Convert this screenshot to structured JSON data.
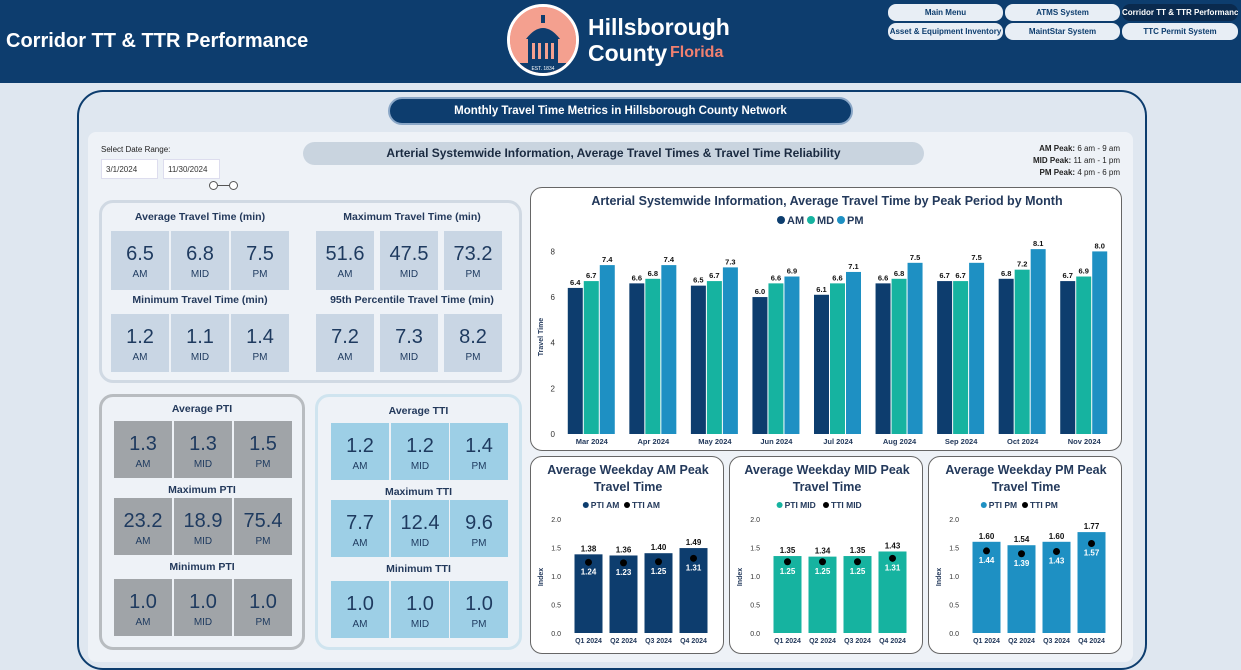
{
  "header": {
    "title": "Corridor TT & TTR Performance",
    "logo_line1": "Hillsborough",
    "logo_line2": "County",
    "logo_line3": "Florida",
    "seal_text": "EST. 1834",
    "nav": [
      "Main Menu",
      "ATMS System",
      "Corridor TT & TTR Performance",
      "Asset & Equipment Inventory",
      "MaintStar System",
      "TTC Permit System"
    ],
    "active_nav": "Corridor TT & TTR Performance"
  },
  "frame_title": "Monthly Travel Time Metrics in Hillsborough County Network",
  "date_range": {
    "label": "Select Date Range:",
    "start": "3/1/2024",
    "end": "11/30/2024"
  },
  "section_title": "Arterial Systemwide Information, Average Travel Times & Travel Time Reliability",
  "peak_notes": [
    {
      "name": "AM Peak:",
      "range": "6 am - 9 am"
    },
    {
      "name": "MID Peak:",
      "range": "11 am - 1 pm"
    },
    {
      "name": "PM Peak:",
      "range": "4 pm - 6 pm"
    }
  ],
  "kpis": {
    "avg_tt": {
      "title": "Average Travel Time (min)",
      "am": "6.5",
      "mid": "6.8",
      "pm": "7.5"
    },
    "max_tt": {
      "title": "Maximum Travel Time (min)",
      "am": "51.6",
      "mid": "47.5",
      "pm": "73.2"
    },
    "min_tt": {
      "title": "Minimum Travel Time (min)",
      "am": "1.2",
      "mid": "1.1",
      "pm": "1.4"
    },
    "p95_tt": {
      "title": "95th Percentile Travel Time (min)",
      "am": "7.2",
      "mid": "7.3",
      "pm": "8.2"
    },
    "avg_pti": {
      "title": "Average PTI",
      "am": "1.3",
      "mid": "1.3",
      "pm": "1.5"
    },
    "max_pti": {
      "title": "Maximum PTI",
      "am": "23.2",
      "mid": "18.9",
      "pm": "75.4"
    },
    "min_pti": {
      "title": "Minimum PTI",
      "am": "1.0",
      "mid": "1.0",
      "pm": "1.0"
    },
    "avg_tti": {
      "title": "Average TTI",
      "am": "1.2",
      "mid": "1.2",
      "pm": "1.4"
    },
    "max_tti": {
      "title": "Maximum TTI",
      "am": "7.7",
      "mid": "12.4",
      "pm": "9.6"
    },
    "min_tti": {
      "title": "Minimum TTI",
      "am": "1.0",
      "mid": "1.0",
      "pm": "1.0"
    },
    "labels": {
      "am": "AM",
      "mid": "MID",
      "pm": "PM"
    }
  },
  "colors": {
    "am": "#0d3d6e",
    "mid": "#16b3a0",
    "pm": "#1e90c3",
    "header": "#0d3d6e"
  },
  "chart_data": [
    {
      "type": "bar",
      "title": "Arterial Systemwide Information, Average Travel Time by Peak Period by Month",
      "ylabel": "Travel Time",
      "ylim": [
        0,
        8.5
      ],
      "yticks": [
        0,
        2,
        4,
        6,
        8
      ],
      "legend": "top",
      "categories": [
        "Mar 2024",
        "Apr 2024",
        "May 2024",
        "Jun 2024",
        "Jul 2024",
        "Aug 2024",
        "Sep 2024",
        "Oct 2024",
        "Nov 2024"
      ],
      "series": [
        {
          "name": "AM",
          "values": [
            6.4,
            6.6,
            6.5,
            6.0,
            6.1,
            6.6,
            6.7,
            6.8,
            6.7
          ]
        },
        {
          "name": "MD",
          "values": [
            6.7,
            6.8,
            6.7,
            6.6,
            6.6,
            6.8,
            6.7,
            7.2,
            6.9
          ]
        },
        {
          "name": "PM",
          "values": [
            7.4,
            7.4,
            7.3,
            6.9,
            7.1,
            7.5,
            7.5,
            8.1,
            8.0
          ]
        }
      ]
    },
    {
      "type": "bar",
      "title": "Average Weekday AM Peak Travel Time",
      "ylabel": "Index",
      "ylim": [
        0,
        2.0
      ],
      "yticks": [
        "0.0",
        "0.5",
        "1.0",
        "1.5",
        "2.0"
      ],
      "categories": [
        "Q1 2024",
        "Q2 2024",
        "Q3 2024",
        "Q4 2024"
      ],
      "series": [
        {
          "name": "PTI AM",
          "values": [
            1.38,
            1.36,
            1.4,
            1.49
          ]
        },
        {
          "name": "TTI AM",
          "values": [
            1.24,
            1.23,
            1.25,
            1.31
          ]
        }
      ]
    },
    {
      "type": "bar",
      "title": "Average Weekday MID Peak Travel Time",
      "ylabel": "Index",
      "ylim": [
        0,
        2.0
      ],
      "yticks": [
        "0.0",
        "0.5",
        "1.0",
        "1.5",
        "2.0"
      ],
      "categories": [
        "Q1 2024",
        "Q2 2024",
        "Q3 2024",
        "Q4 2024"
      ],
      "series": [
        {
          "name": "PTI MID",
          "values": [
            1.35,
            1.34,
            1.35,
            1.43
          ]
        },
        {
          "name": "TTI MID",
          "values": [
            1.25,
            1.25,
            1.25,
            1.31
          ]
        }
      ]
    },
    {
      "type": "bar",
      "title": "Average Weekday PM Peak Travel Time",
      "ylabel": "Index",
      "ylim": [
        0,
        2.0
      ],
      "yticks": [
        "0.0",
        "0.5",
        "1.0",
        "1.5",
        "2.0"
      ],
      "categories": [
        "Q1 2024",
        "Q2 2024",
        "Q3 2024",
        "Q4 2024"
      ],
      "series": [
        {
          "name": "PTI PM",
          "values": [
            1.6,
            1.54,
            1.6,
            1.77
          ]
        },
        {
          "name": "TTI PM",
          "values": [
            1.44,
            1.39,
            1.43,
            1.57
          ]
        }
      ]
    }
  ]
}
